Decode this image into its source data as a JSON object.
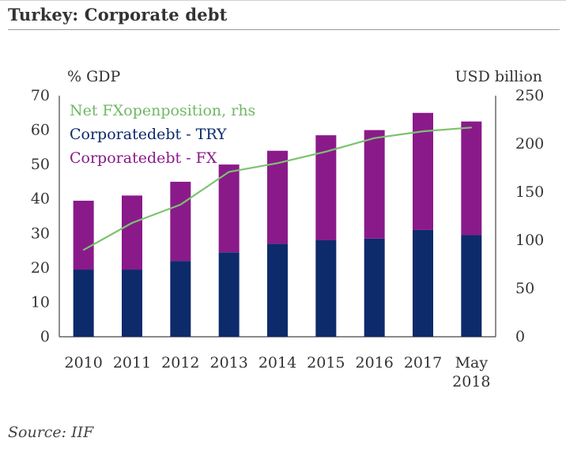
{
  "header": {
    "title": "Turkey: Corporate debt"
  },
  "footer": {
    "source": "Source: IIF"
  },
  "chart_data": {
    "type": "bar",
    "stacked": true,
    "categories": [
      "2010",
      "2011",
      "2012",
      "2013",
      "2014",
      "2015",
      "2016",
      "2017",
      "May 2018"
    ],
    "category_lines": [
      [
        "2010"
      ],
      [
        "2011"
      ],
      [
        "2012"
      ],
      [
        "2013"
      ],
      [
        "2014"
      ],
      [
        "2015"
      ],
      [
        "2016"
      ],
      [
        "2017"
      ],
      [
        "May",
        "2018"
      ]
    ],
    "series": [
      {
        "name": "Corporate debt - TRY",
        "type": "bar",
        "axis": "left",
        "color": "#0d2a6b",
        "values": [
          19.5,
          19.5,
          22,
          24.5,
          27,
          28,
          28.5,
          31,
          29.5
        ]
      },
      {
        "name": "Corporate debt - FX",
        "type": "bar",
        "axis": "left",
        "color": "#8a1a8a",
        "values": [
          20,
          21.5,
          23,
          25.5,
          27,
          30.5,
          31.5,
          34,
          33
        ]
      },
      {
        "name": "Net FX open position, rhs",
        "type": "line",
        "axis": "right",
        "color": "#7dc26f",
        "values": [
          90,
          118,
          137,
          171,
          180,
          192,
          206,
          213,
          217
        ]
      }
    ],
    "legend": {
      "placement": "top-left",
      "entries": [
        {
          "label": "Net FXopenposition, rhs",
          "color": "#6fb864"
        },
        {
          "label": "Corporatedebt - TRY",
          "color": "#0d2a6b"
        },
        {
          "label": "Corporatedebt - FX",
          "color": "#8a1a8a"
        }
      ]
    },
    "y_left": {
      "label": "% GDP",
      "ylim": [
        0,
        70
      ],
      "ticks": [
        0,
        10,
        20,
        30,
        40,
        50,
        60,
        70
      ]
    },
    "y_right": {
      "label": "USD billion",
      "ylim": [
        0,
        250
      ],
      "ticks": [
        0,
        50,
        100,
        150,
        200,
        250
      ]
    },
    "grid": false
  }
}
